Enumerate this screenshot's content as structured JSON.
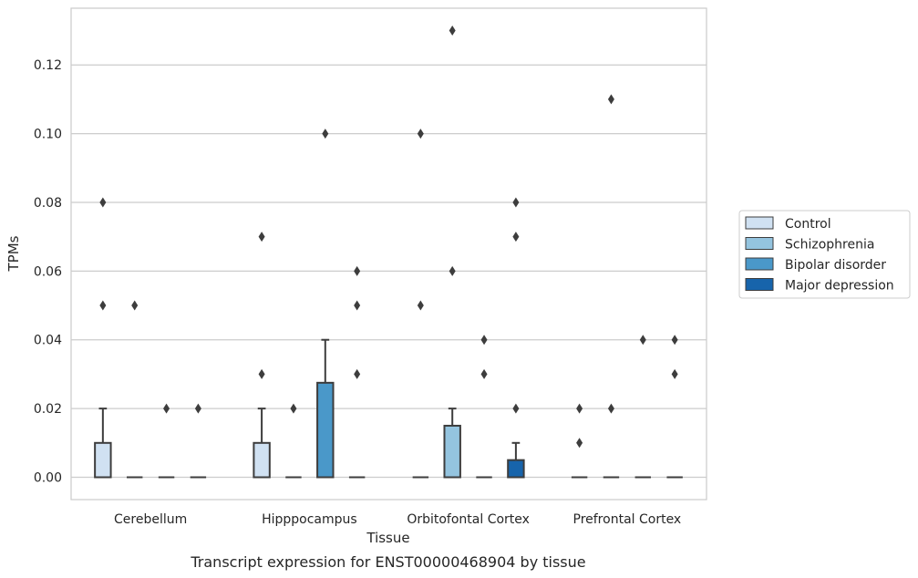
{
  "caption": "Transcript expression for ENST00000468904 by tissue",
  "chart_data": {
    "type": "box",
    "title": "",
    "xlabel": "Tissue",
    "ylabel": "TPMs",
    "ylim": [
      -0.0065,
      0.1365
    ],
    "yticks": [
      "0.00",
      "0.02",
      "0.04",
      "0.06",
      "0.08",
      "0.10",
      "0.12"
    ],
    "grid": "horizontal",
    "legend_position": "right",
    "categories": [
      "Cerebellum",
      "Hipppocampus",
      "Orbitofontal Cortex",
      "Prefrontal Cortex"
    ],
    "series": [
      {
        "name": "Control",
        "color": "#d0e1f2",
        "boxes": [
          {
            "q1": 0,
            "median": 0,
            "q3": 0.01,
            "whisker_low": 0,
            "whisker_high": 0.02,
            "outliers": [
              0.05,
              0.08
            ]
          },
          {
            "q1": 0,
            "median": 0,
            "q3": 0.01,
            "whisker_low": 0,
            "whisker_high": 0.02,
            "outliers": [
              0.03,
              0.07
            ]
          },
          {
            "q1": 0,
            "median": 0,
            "q3": 0,
            "whisker_low": 0,
            "whisker_high": 0,
            "outliers": [
              0.05,
              0.1
            ]
          },
          {
            "q1": 0,
            "median": 0,
            "q3": 0,
            "whisker_low": 0,
            "whisker_high": 0,
            "outliers": [
              0.01,
              0.02
            ]
          }
        ]
      },
      {
        "name": "Schizophrenia",
        "color": "#94c4df",
        "boxes": [
          {
            "q1": 0,
            "median": 0,
            "q3": 0,
            "whisker_low": 0,
            "whisker_high": 0,
            "outliers": [
              0.05
            ]
          },
          {
            "q1": 0,
            "median": 0,
            "q3": 0,
            "whisker_low": 0,
            "whisker_high": 0,
            "outliers": [
              0.02
            ]
          },
          {
            "q1": 0,
            "median": 0,
            "q3": 0.015,
            "whisker_low": 0,
            "whisker_high": 0.02,
            "outliers": [
              0.06,
              0.13
            ]
          },
          {
            "q1": 0,
            "median": 0,
            "q3": 0,
            "whisker_low": 0,
            "whisker_high": 0,
            "outliers": [
              0.02,
              0.11
            ]
          }
        ]
      },
      {
        "name": "Bipolar disorder",
        "color": "#4a98c9",
        "boxes": [
          {
            "q1": 0,
            "median": 0,
            "q3": 0,
            "whisker_low": 0,
            "whisker_high": 0,
            "outliers": [
              0.02
            ]
          },
          {
            "q1": 0,
            "median": 0,
            "q3": 0.0275,
            "whisker_low": 0,
            "whisker_high": 0.04,
            "outliers": [
              0.1
            ]
          },
          {
            "q1": 0,
            "median": 0,
            "q3": 0,
            "whisker_low": 0,
            "whisker_high": 0,
            "outliers": [
              0.03,
              0.04
            ]
          },
          {
            "q1": 0,
            "median": 0,
            "q3": 0,
            "whisker_low": 0,
            "whisker_high": 0,
            "outliers": [
              0.04
            ]
          }
        ]
      },
      {
        "name": "Major depression",
        "color": "#1764ab",
        "boxes": [
          {
            "q1": 0,
            "median": 0,
            "q3": 0,
            "whisker_low": 0,
            "whisker_high": 0,
            "outliers": [
              0.02
            ]
          },
          {
            "q1": 0,
            "median": 0,
            "q3": 0,
            "whisker_low": 0,
            "whisker_high": 0,
            "outliers": [
              0.03,
              0.05,
              0.06
            ]
          },
          {
            "q1": 0,
            "median": 0,
            "q3": 0.005,
            "whisker_low": 0,
            "whisker_high": 0.01,
            "outliers": [
              0.02,
              0.07,
              0.08
            ]
          },
          {
            "q1": 0,
            "median": 0,
            "q3": 0,
            "whisker_low": 0,
            "whisker_high": 0,
            "outliers": [
              0.03,
              0.04
            ]
          }
        ]
      }
    ]
  }
}
